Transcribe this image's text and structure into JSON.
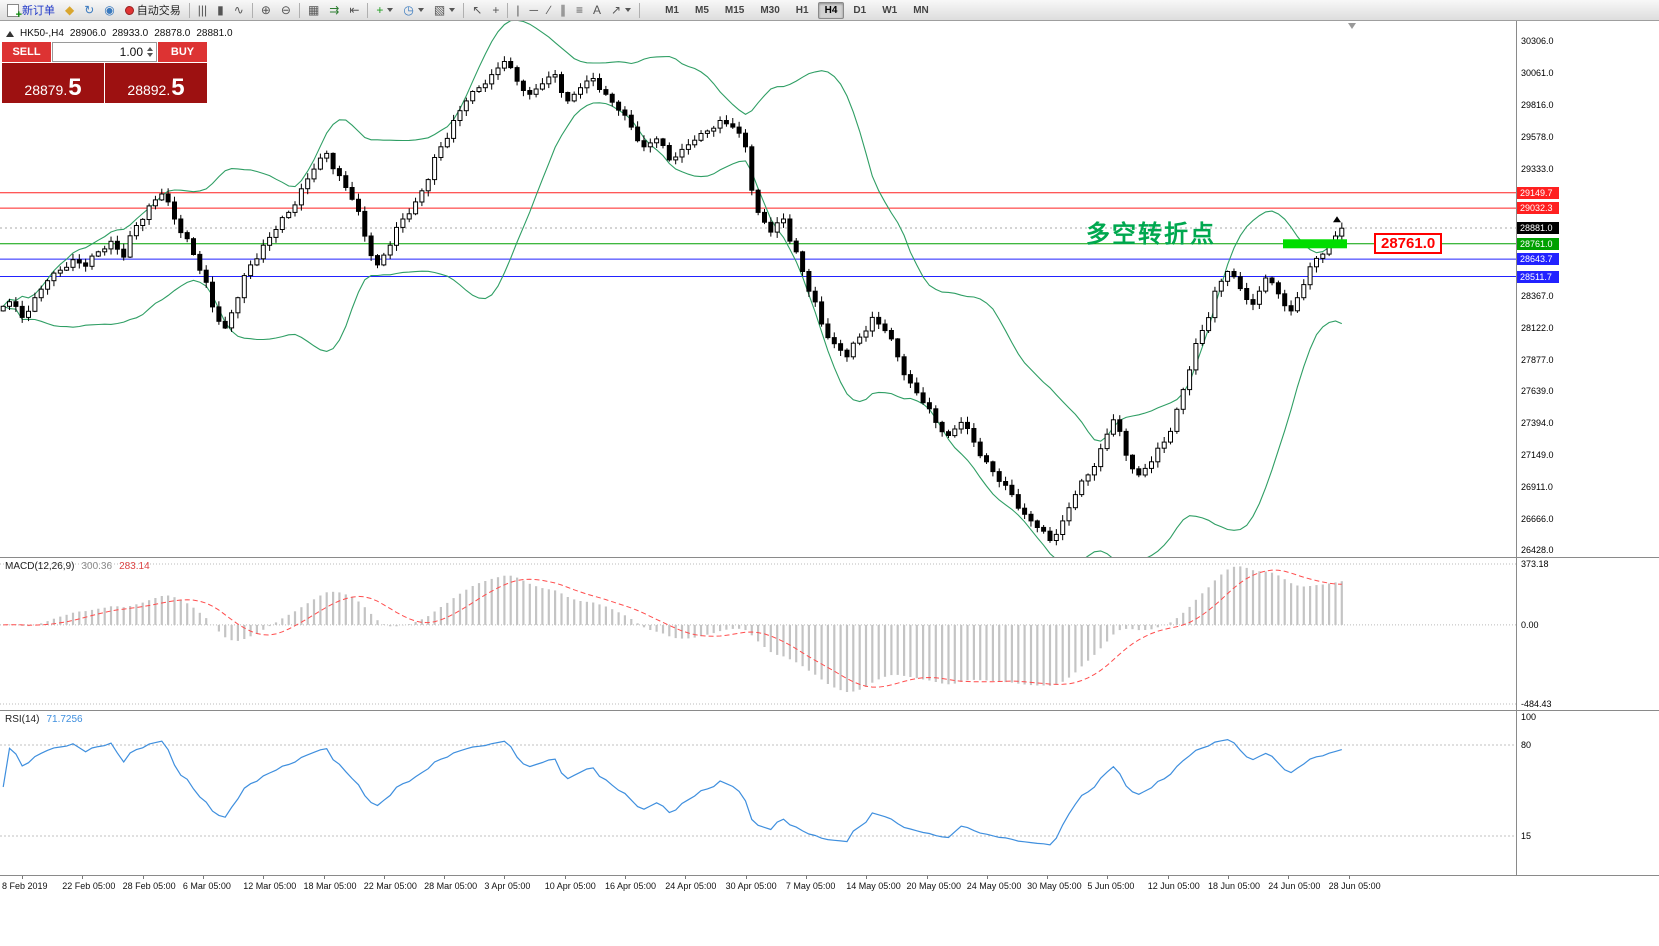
{
  "toolbar": {
    "items": [
      {
        "name": "new-order",
        "label": "新订单",
        "label_color": "#2038c8",
        "icon": "new-order"
      },
      {
        "name": "metaeditor",
        "glyph": "◆",
        "color": "#d9a62e"
      },
      {
        "name": "refresh",
        "glyph": "↻",
        "color": "#3a7abf"
      },
      {
        "name": "mql5-community",
        "glyph": "◉",
        "color": "#3a7abf"
      },
      {
        "name": "auto-trading",
        "label": "自动交易",
        "icon": "red-dot"
      },
      {
        "sep": true
      },
      {
        "name": "bar-chart",
        "glyph": "|||"
      },
      {
        "name": "candlestick-chart",
        "glyph": "▮"
      },
      {
        "name": "line-chart",
        "glyph": "∿"
      },
      {
        "sep": true
      },
      {
        "name": "zoom-in",
        "glyph": "⊕"
      },
      {
        "name": "zoom-out",
        "glyph": "⊖"
      },
      {
        "sep": true
      },
      {
        "name": "tile-windows",
        "glyph": "▦"
      },
      {
        "name": "auto-scroll",
        "glyph": "⇉",
        "color": "#2e7d32"
      },
      {
        "name": "chart-shift",
        "glyph": "⇤"
      },
      {
        "sep": true
      },
      {
        "name": "new-chart",
        "glyph": "+",
        "color": "#1e9e1e",
        "dropdown": true
      },
      {
        "name": "periods",
        "glyph": "◷",
        "color": "#3a7abf",
        "dropdown": true
      },
      {
        "name": "templates",
        "glyph": "▧",
        "dropdown": true
      },
      {
        "sep": true
      },
      {
        "name": "cursor",
        "glyph": "↖"
      },
      {
        "name": "crosshair",
        "glyph": "+"
      },
      {
        "sep": true
      },
      {
        "name": "vertical-line",
        "glyph": "|"
      },
      {
        "name": "horizontal-line",
        "glyph": "─"
      },
      {
        "name": "trendline",
        "glyph": "∕"
      },
      {
        "name": "equidistant-channel",
        "glyph": "∥"
      },
      {
        "name": "fibonacci",
        "glyph": "≡"
      },
      {
        "name": "text-label",
        "glyph": "A"
      },
      {
        "name": "arrow-objects",
        "glyph": "↗",
        "dropdown": true
      },
      {
        "sep": true
      }
    ],
    "timeframes": [
      "M1",
      "M5",
      "M15",
      "M30",
      "H1",
      "H4",
      "D1",
      "W1",
      "MN"
    ],
    "active_timeframe": "H4"
  },
  "trade_panel": {
    "sell_label": "SELL",
    "buy_label": "BUY",
    "volume": "1.00",
    "sell_price_int": "28879.",
    "sell_price_big": "5",
    "buy_price_int": "28892.",
    "buy_price_big": "5"
  },
  "info_line": {
    "symbol": "HK50-,H4",
    "open": "28906.0",
    "high": "28933.0",
    "low": "28878.0",
    "close": "28881.0"
  },
  "chart_data": {
    "type": "candlestick",
    "symbol": "HK50-",
    "timeframe": "H4",
    "price_path": [
      28250,
      28320,
      28200,
      28350,
      28480,
      28560,
      28640,
      28590,
      28700,
      28780,
      28660,
      28900,
      29050,
      29140,
      28950,
      28800,
      28560,
      28280,
      28120,
      28350,
      28600,
      28750,
      28870,
      29000,
      29180,
      29330,
      29450,
      29280,
      29100,
      28820,
      28600,
      28750,
      28950,
      29080,
      29250,
      29500,
      29700,
      29850,
      29950,
      30050,
      30150,
      30000,
      29900,
      29980,
      30050,
      29850,
      29950,
      30020,
      29900,
      29780,
      29650,
      29500,
      29560,
      29400,
      29480,
      29550,
      29620,
      29700,
      29650,
      29500,
      29000,
      28850,
      28950,
      28700,
      28400,
      28150,
      28000,
      27900,
      28050,
      28200,
      28100,
      27900,
      27700,
      27550,
      27400,
      27300,
      27400,
      27250,
      27100,
      26950,
      26850,
      26700,
      26600,
      26500,
      26650,
      26850,
      27000,
      27200,
      27420,
      27150,
      27000,
      27100,
      27250,
      27500,
      27800,
      28100,
      28400,
      28550,
      28420,
      28300,
      28500,
      28380,
      28250,
      28450,
      28650,
      28760,
      28880
    ],
    "price_axis": {
      "min": 26428.0,
      "max": 30306.0,
      "ticks": [
        30306.0,
        30061.0,
        29816.0,
        29578.0,
        29333.0,
        28367.0,
        28122.0,
        27877.0,
        27639.0,
        27394.0,
        27149.0,
        26911.0,
        26666.0,
        26428.0
      ]
    },
    "hlines": [
      {
        "price": 29149.7,
        "label": "29149.7",
        "color": "#ff2020"
      },
      {
        "price": 29032.3,
        "label": "29032.3",
        "color": "#ff2020"
      },
      {
        "price": 28761.0,
        "label": "28761.0",
        "color": "#00a000"
      },
      {
        "price": 28643.7,
        "label": "28643.7",
        "color": "#2222ff"
      },
      {
        "price": 28511.7,
        "label": "28511.7",
        "color": "#2222ff"
      }
    ],
    "current_price": {
      "price": 28881.0,
      "label": "28881.0",
      "color": "#000000"
    },
    "bollinger": {
      "period": 20,
      "deviation": 2,
      "color": "#2f9e64"
    },
    "highlight_bar": {
      "price": 28761.0,
      "color": "#00dd00"
    },
    "annotation": {
      "text": "多空转折点",
      "color": "#00a84f"
    },
    "callout_label": {
      "text": "28761.0",
      "color": "#ff0000"
    },
    "macd": {
      "name": "MACD(12,26,9)",
      "value_main": "300.36",
      "value_signal": "283.14",
      "axis": [
        373.18,
        0.0,
        -484.43
      ],
      "hist_color": "#c4c4c4",
      "signal_color": "#ff4d4d"
    },
    "rsi": {
      "name": "RSI(14)",
      "value": "71.7256",
      "max_label": 100,
      "levels": [
        80,
        15
      ],
      "color": "#3f8fde"
    },
    "x_labels": [
      "8 Feb 2019",
      "22 Feb 05:00",
      "28 Feb 05:00",
      "6 Mar 05:00",
      "12 Mar 05:00",
      "18 Mar 05:00",
      "22 Mar 05:00",
      "28 Mar 05:00",
      "3 Apr 05:00",
      "10 Apr 05:00",
      "16 Apr 05:00",
      "24 Apr 05:00",
      "30 Apr 05:00",
      "7 May 05:00",
      "14 May 05:00",
      "20 May 05:00",
      "24 May 05:00",
      "30 May 05:00",
      "5 Jun 05:00",
      "12 Jun 05:00",
      "18 Jun 05:00",
      "24 Jun 05:00",
      "28 Jun 05:00"
    ]
  }
}
